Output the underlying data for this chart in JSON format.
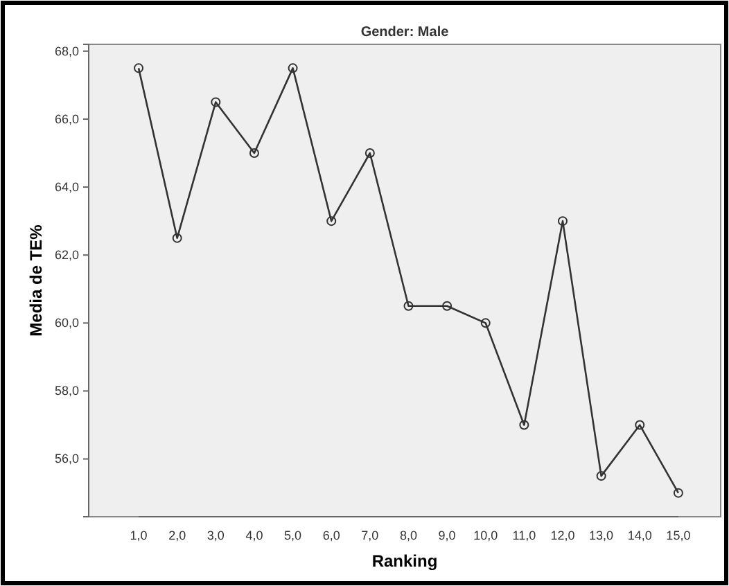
{
  "chart_data": {
    "type": "line",
    "title": "Gender: Male",
    "xlabel": "Ranking",
    "ylabel": "Media de TE%",
    "categories": [
      "1,0",
      "2,0",
      "3,0",
      "4,0",
      "5,0",
      "6,0",
      "7,0",
      "8,0",
      "9,0",
      "10,0",
      "11,0",
      "12,0",
      "13,0",
      "14,0",
      "15,0"
    ],
    "series": [
      {
        "color": "#333333",
        "values": [
          67.5,
          62.5,
          66.5,
          65,
          67.5,
          63,
          65,
          60.5,
          60.5,
          60,
          57,
          63,
          55.5,
          57,
          55
        ]
      }
    ],
    "ylim": [
      54.3,
      68.2
    ],
    "yticks": [
      {
        "value": 56,
        "label": "56,0"
      },
      {
        "value": 58,
        "label": "58,0"
      },
      {
        "value": 60,
        "label": "60,0"
      },
      {
        "value": 62,
        "label": "62,0"
      },
      {
        "value": 64,
        "label": "64,0"
      },
      {
        "value": 66,
        "label": "66,0"
      },
      {
        "value": 68,
        "label": "68,0"
      }
    ],
    "grid": false,
    "marker": "circle",
    "line_style": "solid"
  }
}
